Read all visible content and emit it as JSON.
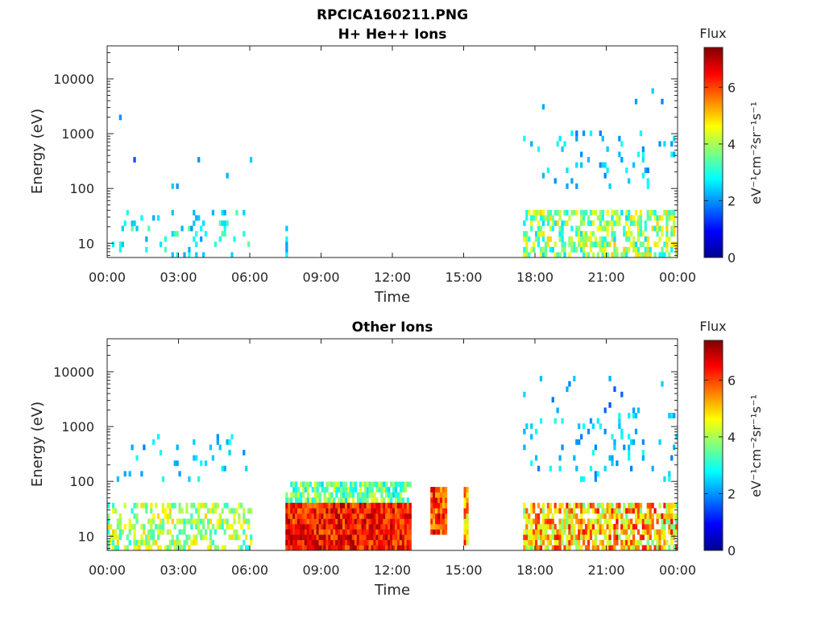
{
  "figure_title": "RPCICA160211.PNG",
  "colorbar": {
    "title": "Flux",
    "units": "eV⁻¹cm⁻²sr⁻¹s⁻¹",
    "ticks": [
      "0",
      "2",
      "4",
      "6"
    ],
    "range": [
      0,
      7.4
    ],
    "colormap": "jet"
  },
  "chart_data": [
    {
      "type": "heatmap",
      "title": "H+ He++ Ions",
      "xlabel": "Time",
      "ylabel": "Energy (eV)",
      "x_tick_labels": [
        "00:00",
        "03:00",
        "06:00",
        "09:00",
        "12:00",
        "15:00",
        "18:00",
        "21:00",
        "00:00"
      ],
      "x_range_hours": [
        0,
        24
      ],
      "y_tick_labels": [
        "10",
        "100",
        "1000",
        "10000"
      ],
      "y_scale": "log",
      "y_range_eV": [
        5.5,
        40000
      ],
      "regions": [
        {
          "t": [
            0.0,
            6.1
          ],
          "e": [
            6,
            35
          ],
          "flux": [
            2.0,
            3.5
          ],
          "density": 0.12
        },
        {
          "t": [
            0.0,
            6.1
          ],
          "e": [
            100,
            2500
          ],
          "flux": [
            1.5,
            2.5
          ],
          "density": 0.004
        },
        {
          "t": [
            7.5,
            7.6
          ],
          "e": [
            6,
            18
          ],
          "flux": [
            2.0,
            3.0
          ],
          "density": 0.5
        },
        {
          "t": [
            17.5,
            24.0
          ],
          "e": [
            6,
            35
          ],
          "flux": [
            2.5,
            5.0
          ],
          "density": 0.55
        },
        {
          "t": [
            17.5,
            24.0
          ],
          "e": [
            100,
            1000
          ],
          "flux": [
            1.8,
            3.0
          ],
          "density": 0.08
        },
        {
          "t": [
            17.5,
            24.0
          ],
          "e": [
            1000,
            8000
          ],
          "flux": [
            1.5,
            2.5
          ],
          "density": 0.02
        }
      ]
    },
    {
      "type": "heatmap",
      "title": "Other Ions",
      "xlabel": "Time",
      "ylabel": "Energy (eV)",
      "x_tick_labels": [
        "00:00",
        "03:00",
        "06:00",
        "09:00",
        "12:00",
        "15:00",
        "18:00",
        "21:00",
        "00:00"
      ],
      "x_range_hours": [
        0,
        24
      ],
      "y_tick_labels": [
        "10",
        "100",
        "1000",
        "10000"
      ],
      "y_scale": "log",
      "y_range_eV": [
        5.5,
        40000
      ],
      "regions": [
        {
          "t": [
            0.0,
            6.1
          ],
          "e": [
            6,
            35
          ],
          "flux": [
            3.0,
            5.0
          ],
          "density": 0.45
        },
        {
          "t": [
            0.0,
            6.1
          ],
          "e": [
            100,
            600
          ],
          "flux": [
            1.8,
            3.0
          ],
          "density": 0.05
        },
        {
          "t": [
            7.5,
            12.8
          ],
          "e": [
            40,
            80
          ],
          "flux": [
            2.5,
            4.5
          ],
          "density": 0.7
        },
        {
          "t": [
            7.5,
            12.8
          ],
          "e": [
            6,
            35
          ],
          "flux": [
            5.5,
            7.2
          ],
          "density": 1.0
        },
        {
          "t": [
            13.6,
            14.3
          ],
          "e": [
            12,
            75
          ],
          "flux": [
            5.0,
            7.0
          ],
          "density": 1.0
        },
        {
          "t": [
            15.0,
            15.2
          ],
          "e": [
            8,
            75
          ],
          "flux": [
            4.0,
            6.5
          ],
          "density": 1.0
        },
        {
          "t": [
            17.5,
            24.0
          ],
          "e": [
            6,
            35
          ],
          "flux": [
            3.5,
            6.5
          ],
          "density": 0.75
        },
        {
          "t": [
            17.5,
            24.0
          ],
          "e": [
            100,
            1500
          ],
          "flux": [
            1.8,
            3.0
          ],
          "density": 0.08
        },
        {
          "t": [
            17.5,
            24.0
          ],
          "e": [
            1500,
            9000
          ],
          "flux": [
            1.5,
            2.5
          ],
          "density": 0.02
        }
      ]
    }
  ]
}
